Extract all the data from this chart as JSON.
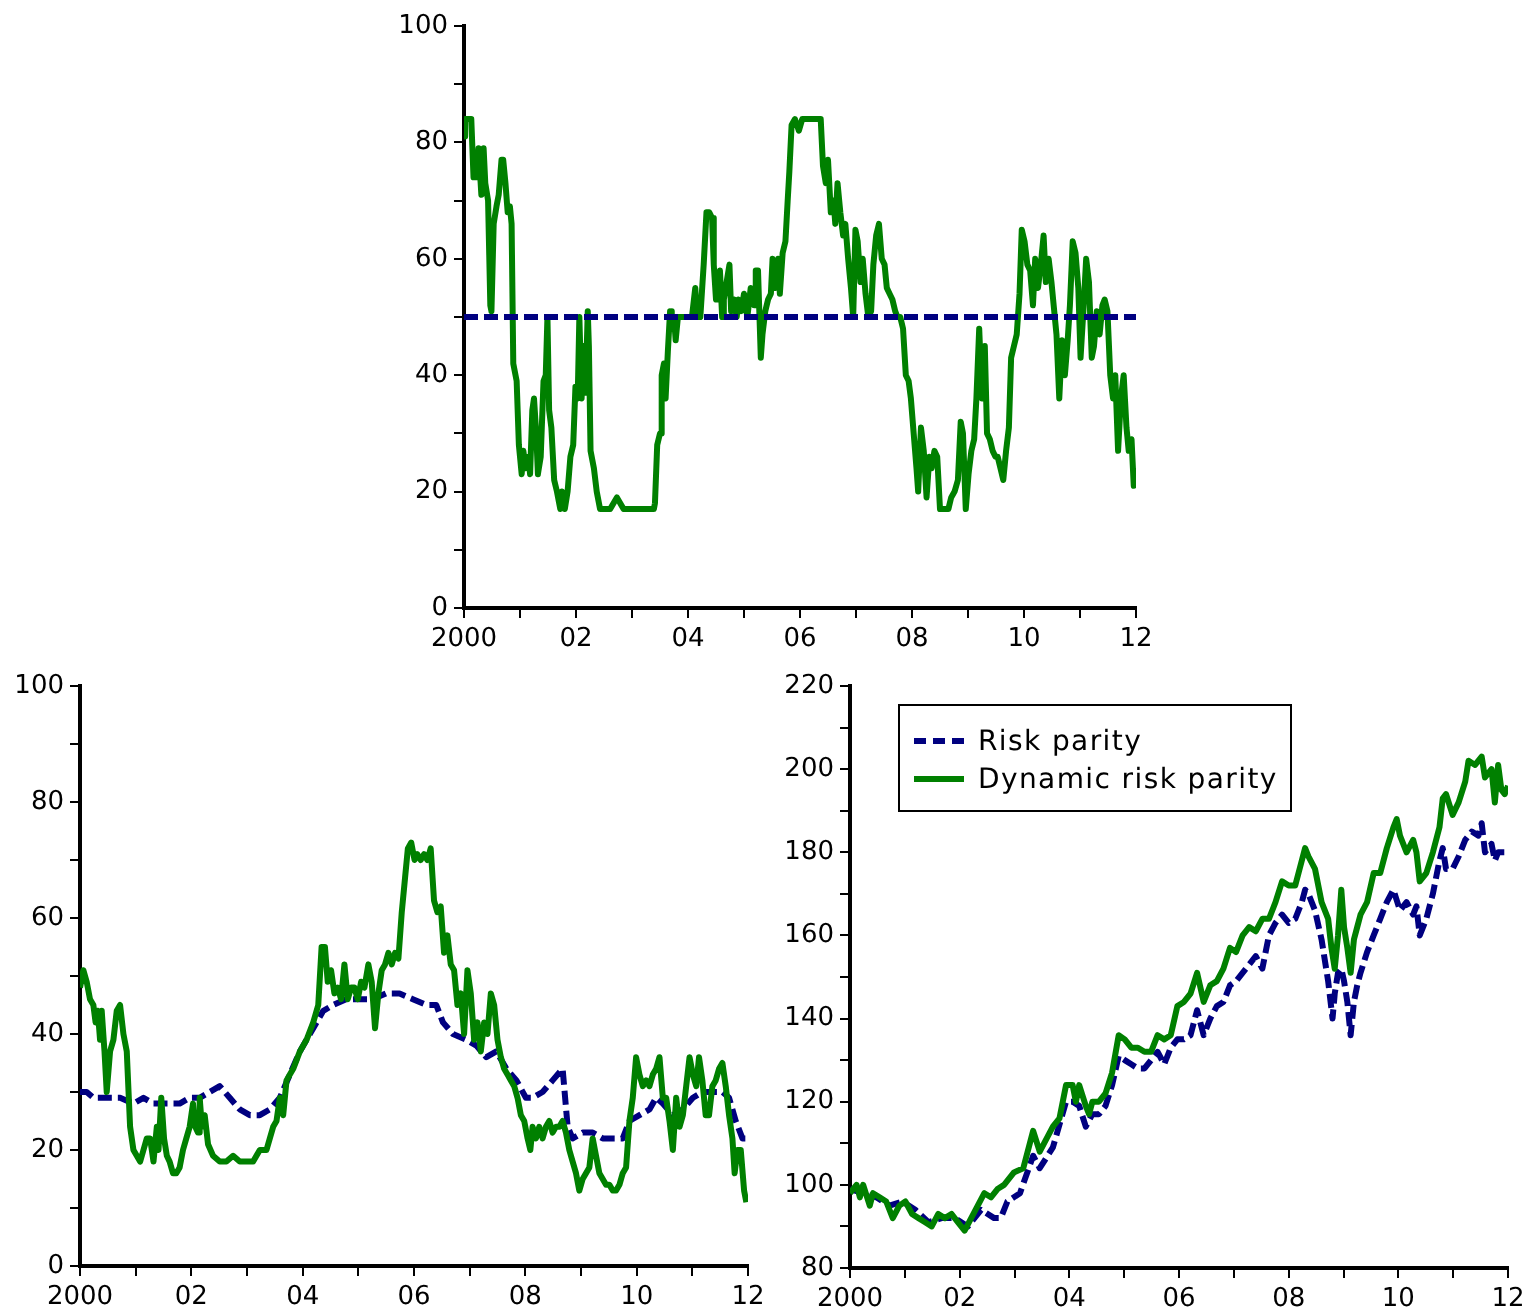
{
  "chart_data": [
    {
      "type": "line",
      "series": [
        {
          "color": "#008000",
          "line_style": "solid",
          "x": [
            2000,
            2000.02,
            2000.13,
            2000.17,
            2000.23,
            2000.26,
            2000.31,
            2000.35,
            2000.38,
            2000.43,
            2000.47,
            2000.49,
            2000.53,
            2000.58,
            2000.62,
            2000.67,
            2000.7,
            2000.74,
            2000.78,
            2000.82,
            2000.85,
            2000.88,
            2000.94,
            2000.98,
            2001.03,
            2001.06,
            2001.1,
            2001.15,
            2001.18,
            2001.22,
            2001.25,
            2001.29,
            2001.32,
            2001.37,
            2001.42,
            2001.46,
            2001.49,
            2001.52,
            2001.56,
            2001.61,
            2001.66,
            2001.72,
            2001.75,
            2001.8,
            2001.85,
            2001.9,
            2001.95,
            2001.99,
            2002.03,
            2002.06,
            2002.1,
            2002.14,
            2002.17,
            2002.21,
            2002.23,
            2002.26,
            2002.32,
            2002.37,
            2002.43,
            2002.49,
            2002.55,
            2002.61,
            2002.67,
            2002.73,
            2002.79,
            2002.85,
            2003.39,
            2003.41,
            2003.45,
            2003.5,
            2003.53,
            2003.57,
            2003.6,
            2003.64,
            2003.68,
            2003.71,
            2003.75,
            2003.78,
            2003.82,
            2004,
            2004.07,
            2004.13,
            2004.16,
            2004.22,
            2004.28,
            2004.33,
            2004.38,
            2004.43,
            2004.46,
            2004.5,
            2004.53,
            2004.57,
            2004.61,
            2004.64,
            2004.69,
            2004.74,
            2004.77,
            2004.82,
            2004.87,
            2004.9,
            2004.95,
            2005,
            2005.06,
            2005.12,
            2005.18,
            2005.21,
            2005.25,
            2005.3,
            2005.33,
            2005.38,
            2005.43,
            2005.48,
            2005.51,
            2005.56,
            2005.61,
            2005.64,
            2005.69,
            2005.74,
            2005.78,
            2005.81,
            2005.85,
            2005.91,
            2005.98,
            2006.04,
            2006.1,
            2006.19,
            2006.31,
            2006.37,
            2006.41,
            2006.46,
            2006.5,
            2006.55,
            2006.6,
            2006.63,
            2006.67,
            2006.72,
            2006.77,
            2006.81,
            2006.86,
            2006.91,
            2006.95,
            2006.99,
            2007.03,
            2007.08,
            2007.12,
            2007.17,
            2007.22,
            2007.27,
            2007.31,
            2007.36,
            2007.41,
            2007.46,
            2007.51,
            2007.55,
            2007.6,
            2007.65,
            2007.7,
            2007.74,
            2007.79,
            2007.84,
            2007.89,
            2007.94,
            2007.98,
            2008.03,
            2008.08,
            2008.11,
            2008.16,
            2008.21,
            2008.26,
            2008.31,
            2008.35,
            2008.4,
            2008.45,
            2008.5,
            2008.58,
            2008.65,
            2008.7,
            2008.76,
            2008.82,
            2008.87,
            2008.91,
            2008.96,
            2009.01,
            2009.06,
            2009.11,
            2009.15,
            2009.2,
            2009.25,
            2009.3,
            2009.34,
            2009.39,
            2009.44,
            2009.49,
            2009.53,
            2009.58,
            2009.63,
            2009.68,
            2009.73,
            2009.77,
            2009.82,
            2009.87,
            2009.92,
            2009.96,
            2010.01,
            2010.06,
            2010.11,
            2010.16,
            2010.2,
            2010.25,
            2010.3,
            2010.35,
            2010.39,
            2010.44,
            2010.49,
            2010.54,
            2010.58,
            2010.63,
            2010.68,
            2010.73,
            2010.78,
            2010.82,
            2010.87,
            2010.92,
            2010.97,
            2011.01,
            2011.06,
            2011.11,
            2011.16,
            2011.21,
            2011.25,
            2011.3,
            2011.35,
            2011.4,
            2011.44,
            2011.49,
            2011.54,
            2011.59,
            2011.63,
            2011.68,
            2011.73,
            2011.78,
            2011.83,
            2011.87,
            2011.92,
            2011.96,
            2012
          ],
          "values": [
            81,
            84,
            84,
            74,
            74,
            79,
            71,
            79,
            73,
            70,
            52,
            51,
            66,
            69,
            71,
            77,
            77,
            73,
            68,
            69,
            66,
            42,
            39,
            28,
            23,
            27,
            24,
            26,
            23,
            34,
            36,
            30,
            23,
            26,
            39,
            40,
            50,
            34,
            31,
            22,
            20,
            17,
            20,
            17,
            20,
            26,
            28,
            38,
            36,
            50,
            36,
            45,
            37,
            51,
            45,
            27,
            24,
            20,
            17,
            17,
            17,
            17,
            18,
            19,
            18,
            17,
            17,
            18,
            28,
            30,
            40,
            42,
            36,
            44,
            51,
            48,
            50,
            46,
            50,
            50,
            50,
            55,
            50,
            50,
            59,
            68,
            68,
            67,
            59,
            53,
            55,
            58,
            50,
            53,
            56,
            59,
            51,
            53,
            50,
            53,
            51,
            54,
            50,
            55,
            52,
            58,
            58,
            43,
            47,
            51,
            53,
            54,
            60,
            55,
            60,
            54,
            61,
            63,
            70,
            75,
            83,
            84,
            82,
            84,
            84,
            84,
            84,
            84,
            76,
            73,
            77,
            68,
            70,
            66,
            73,
            68,
            64,
            66,
            60,
            55,
            50,
            65,
            63,
            56,
            60,
            54,
            50,
            51,
            59,
            64,
            66,
            60,
            59,
            55,
            54,
            53,
            51,
            50,
            50,
            48,
            40,
            39,
            36,
            30,
            24,
            20,
            31,
            27,
            19,
            26,
            24,
            27,
            26,
            17,
            17,
            17,
            19,
            20,
            22,
            32,
            30,
            17,
            23,
            27,
            29,
            36,
            48,
            36,
            45,
            30,
            29,
            27,
            26,
            26,
            24,
            22,
            27,
            31,
            43,
            45,
            47,
            54,
            65,
            63,
            59,
            58,
            52,
            60,
            55,
            59,
            64,
            56,
            60,
            56,
            51,
            47,
            36,
            46,
            40,
            46,
            52,
            63,
            61,
            55,
            43,
            51,
            60,
            56,
            43,
            45,
            51,
            47,
            52,
            53,
            51,
            40,
            36,
            40,
            27,
            36,
            40,
            31,
            27,
            29,
            21,
            24
          ]
        },
        {
          "color": "#000080",
          "line_style": "dashed",
          "x": [
            2000,
            2012
          ],
          "values": [
            50,
            50
          ]
        }
      ],
      "xlim": [
        2000,
        2012
      ],
      "xticks": [
        {
          "value": 2000,
          "label": "2000"
        },
        {
          "value": 2001,
          "label": null
        },
        {
          "value": 2002,
          "label": "02"
        },
        {
          "value": 2003,
          "label": null
        },
        {
          "value": 2004,
          "label": "04"
        },
        {
          "value": 2005,
          "label": null
        },
        {
          "value": 2006,
          "label": "06"
        },
        {
          "value": 2007,
          "label": null
        },
        {
          "value": 2008,
          "label": "08"
        },
        {
          "value": 2009,
          "label": null
        },
        {
          "value": 2010,
          "label": "10"
        },
        {
          "value": 2011,
          "label": null
        },
        {
          "value": 2012,
          "label": "12"
        }
      ],
      "ylim": [
        0,
        100
      ],
      "yticks": [
        0,
        {
          "value": 10,
          "label": null
        },
        20,
        {
          "value": 30,
          "label": null
        },
        40,
        {
          "value": 50,
          "label": null
        },
        60,
        {
          "value": 70,
          "label": null
        },
        80,
        {
          "value": 90,
          "label": null
        },
        100
      ]
    },
    {
      "type": "line",
      "series": [
        {
          "color": "#000080",
          "line_style": "dashed",
          "x": [
            2000,
            2000.12,
            2000.24,
            2000.36,
            2000.54,
            2000.72,
            2000.96,
            2001.14,
            2001.32,
            2001.5,
            2001.67,
            2001.79,
            2001.97,
            2002.15,
            2002.33,
            2002.51,
            2002.69,
            2002.87,
            2003.05,
            2003.23,
            2003.41,
            2003.59,
            2003.77,
            2003.95,
            2004.19,
            2004.37,
            2004.55,
            2004.78,
            2005.02,
            2005.26,
            2005.5,
            2005.74,
            2005.98,
            2006.22,
            2006.4,
            2006.52,
            2006.7,
            2006.94,
            2007.12,
            2007.3,
            2007.48,
            2007.66,
            2007.84,
            2008.01,
            2008.13,
            2008.31,
            2008.49,
            2008.67,
            2008.76,
            2008.85,
            2009.03,
            2009.21,
            2009.39,
            2009.57,
            2009.75,
            2009.87,
            2010.05,
            2010.23,
            2010.35,
            2010.47,
            2010.65,
            2010.83,
            2011.01,
            2011.18,
            2011.36,
            2011.54,
            2011.66,
            2011.78,
            2011.9,
            2011.99
          ],
          "values": [
            30,
            30,
            29,
            29,
            29,
            29,
            28,
            29,
            28,
            28,
            28,
            28,
            29,
            29,
            30,
            31,
            29,
            27,
            26,
            26,
            27,
            29,
            33,
            37,
            41,
            44,
            45,
            46,
            46,
            46,
            47,
            47,
            46,
            45,
            45,
            42,
            40,
            39,
            38,
            36,
            37,
            34,
            32,
            29,
            29,
            30,
            32,
            34,
            24,
            22,
            23,
            23,
            22,
            22,
            22,
            25,
            26,
            27,
            29,
            28,
            26,
            27,
            29,
            30,
            30,
            30,
            29,
            25,
            22,
            22
          ]
        },
        {
          "color": "#008000",
          "line_style": "solid",
          "x": [
            2000,
            2000.06,
            2000.12,
            2000.18,
            2000.24,
            2000.28,
            2000.32,
            2000.36,
            2000.39,
            2000.44,
            2000.48,
            2000.54,
            2000.6,
            2000.66,
            2000.72,
            2000.78,
            2000.84,
            2000.9,
            2000.96,
            2001.02,
            2001.08,
            2001.14,
            2001.2,
            2001.26,
            2001.32,
            2001.38,
            2001.41,
            2001.46,
            2001.51,
            2001.56,
            2001.61,
            2001.67,
            2001.73,
            2001.79,
            2001.85,
            2001.91,
            2001.97,
            2002.03,
            2002.07,
            2002.12,
            2002.15,
            2002.19,
            2002.24,
            2002.3,
            2002.39,
            2002.51,
            2002.63,
            2002.75,
            2002.87,
            2002.99,
            2003.11,
            2003.23,
            2003.35,
            2003.41,
            2003.47,
            2003.53,
            2003.59,
            2003.65,
            2003.71,
            2003.77,
            2003.83,
            2003.95,
            2004.07,
            2004.19,
            2004.28,
            2004.34,
            2004.4,
            2004.45,
            2004.51,
            2004.57,
            2004.63,
            2004.69,
            2004.75,
            2004.81,
            2004.87,
            2004.93,
            2004.99,
            2005.05,
            2005.11,
            2005.18,
            2005.24,
            2005.3,
            2005.36,
            2005.42,
            2005.48,
            2005.54,
            2005.6,
            2005.66,
            2005.72,
            2005.78,
            2005.84,
            2005.89,
            2005.95,
            2006.01,
            2006.06,
            2006.12,
            2006.18,
            2006.24,
            2006.3,
            2006.36,
            2006.42,
            2006.48,
            2006.54,
            2006.6,
            2006.66,
            2006.72,
            2006.78,
            2006.84,
            2006.9,
            2006.96,
            2007.02,
            2007.08,
            2007.14,
            2007.2,
            2007.26,
            2007.32,
            2007.38,
            2007.44,
            2007.5,
            2007.56,
            2007.62,
            2007.68,
            2007.74,
            2007.8,
            2007.86,
            2007.92,
            2007.98,
            2008.04,
            2008.09,
            2008.13,
            2008.19,
            2008.25,
            2008.31,
            2008.37,
            2008.43,
            2008.49,
            2008.55,
            2008.61,
            2008.67,
            2008.73,
            2008.79,
            2008.85,
            2008.91,
            2008.97,
            2009.03,
            2009.09,
            2009.15,
            2009.21,
            2009.27,
            2009.33,
            2009.39,
            2009.45,
            2009.51,
            2009.57,
            2009.63,
            2009.69,
            2009.75,
            2009.81,
            2009.87,
            2009.93,
            2009.99,
            2010.05,
            2010.11,
            2010.17,
            2010.23,
            2010.29,
            2010.35,
            2010.41,
            2010.47,
            2010.53,
            2010.59,
            2010.65,
            2010.71,
            2010.77,
            2010.83,
            2010.89,
            2010.95,
            2011.01,
            2011.07,
            2011.12,
            2011.18,
            2011.24,
            2011.3,
            2011.36,
            2011.42,
            2011.48,
            2011.54,
            2011.6,
            2011.66,
            2011.72,
            2011.76,
            2011.81,
            2011.87,
            2011.93,
            2011.97
          ],
          "values": [
            48,
            51,
            49,
            46,
            45,
            42,
            44,
            39,
            44,
            37,
            30,
            37,
            39,
            44,
            45,
            40,
            37,
            24,
            20,
            19,
            18,
            20,
            22,
            22,
            18,
            24,
            20,
            29,
            22,
            19,
            18,
            16,
            16,
            17,
            20,
            22,
            24,
            28,
            24,
            23,
            29,
            24,
            26,
            21,
            19,
            18,
            18,
            19,
            18,
            18,
            18,
            20,
            20,
            22,
            24,
            25,
            29,
            26,
            32,
            33,
            34,
            37,
            39,
            42,
            45,
            55,
            55,
            49,
            51,
            47,
            48,
            46,
            52,
            46,
            48,
            48,
            46,
            49,
            48,
            52,
            49,
            41,
            47,
            51,
            52,
            54,
            52,
            54,
            53,
            61,
            67,
            72,
            73,
            70,
            71,
            70,
            71,
            70,
            72,
            63,
            61,
            62,
            54,
            57,
            52,
            51,
            45,
            47,
            40,
            51,
            47,
            39,
            42,
            37,
            42,
            40,
            47,
            45,
            39,
            36,
            34,
            33,
            32,
            31,
            29,
            26,
            25,
            22,
            20,
            24,
            22,
            24,
            22,
            24,
            25,
            23,
            24,
            24,
            25,
            23,
            20,
            18,
            16,
            13,
            15,
            16,
            17,
            22,
            19,
            16,
            15,
            14,
            14,
            13,
            13,
            14,
            16,
            17,
            25,
            29,
            36,
            33,
            31,
            32,
            31,
            33,
            34,
            36,
            29,
            29,
            25,
            20,
            29,
            24,
            26,
            31,
            36,
            33,
            31,
            36,
            32,
            26,
            26,
            31,
            32,
            34,
            35,
            31,
            26,
            22,
            16,
            20,
            20,
            13,
            11
          ]
        }
      ],
      "xlim": [
        2000,
        2012
      ],
      "xticks": [
        {
          "value": 2000,
          "label": "2000"
        },
        {
          "value": 2001,
          "label": null
        },
        {
          "value": 2002,
          "label": "02"
        },
        {
          "value": 2003,
          "label": null
        },
        {
          "value": 2004,
          "label": "04"
        },
        {
          "value": 2005,
          "label": null
        },
        {
          "value": 2006,
          "label": "06"
        },
        {
          "value": 2007,
          "label": null
        },
        {
          "value": 2008,
          "label": "08"
        },
        {
          "value": 2009,
          "label": null
        },
        {
          "value": 2010,
          "label": "10"
        },
        {
          "value": 2011,
          "label": null
        },
        {
          "value": 2012,
          "label": "12"
        }
      ],
      "ylim": [
        0,
        100
      ],
      "yticks": [
        0,
        {
          "value": 10,
          "label": null
        },
        20,
        {
          "value": 30,
          "label": null
        },
        40,
        {
          "value": 50,
          "label": null
        },
        60,
        {
          "value": 70,
          "label": null
        },
        80,
        {
          "value": 90,
          "label": null
        },
        100
      ]
    },
    {
      "type": "line",
      "legend": "top left",
      "series": [
        {
          "name": "Risk parity",
          "color": "#000080",
          "line_style": "dashed",
          "x": [
            2000,
            2000.24,
            2000.48,
            2000.72,
            2000.96,
            2001.19,
            2001.43,
            2001.67,
            2001.91,
            2002.15,
            2002.39,
            2002.63,
            2002.75,
            2002.87,
            2003.1,
            2003.34,
            2003.46,
            2003.7,
            2003.94,
            2004.06,
            2004.18,
            2004.3,
            2004.42,
            2004.54,
            2004.66,
            2004.78,
            2004.9,
            2005.01,
            2005.13,
            2005.25,
            2005.37,
            2005.49,
            2005.61,
            2005.73,
            2005.85,
            2005.97,
            2006.09,
            2006.21,
            2006.33,
            2006.45,
            2006.57,
            2006.69,
            2006.81,
            2006.93,
            2007.04,
            2007.16,
            2007.28,
            2007.4,
            2007.52,
            2007.64,
            2007.76,
            2007.88,
            2008,
            2008.12,
            2008.24,
            2008.3,
            2008.36,
            2008.48,
            2008.6,
            2008.72,
            2008.8,
            2008.84,
            2008.9,
            2008.96,
            2009.01,
            2009.07,
            2009.13,
            2009.19,
            2009.25,
            2009.31,
            2009.43,
            2009.55,
            2009.67,
            2009.79,
            2009.91,
            2010.03,
            2010.15,
            2010.27,
            2010.33,
            2010.39,
            2010.51,
            2010.63,
            2010.75,
            2010.81,
            2010.87,
            2010.99,
            2011.1,
            2011.22,
            2011.34,
            2011.46,
            2011.52,
            2011.58,
            2011.7,
            2011.76,
            2011.82,
            2011.88,
            2012
          ],
          "values": [
            99,
            98,
            97,
            95,
            96,
            94,
            91,
            92,
            92,
            90,
            94,
            92,
            92,
            96,
            98,
            107,
            104,
            109,
            120,
            120,
            119,
            114,
            117,
            117,
            119,
            124,
            131,
            130,
            129,
            128,
            128,
            130,
            132,
            129,
            133,
            135,
            135,
            136,
            142,
            136,
            140,
            143,
            144,
            148,
            149,
            151,
            153,
            155,
            152,
            160,
            163,
            165,
            163,
            164,
            168,
            171,
            170,
            166,
            159,
            149,
            140,
            146,
            151,
            152,
            149,
            144,
            136,
            144,
            148,
            151,
            156,
            160,
            164,
            168,
            171,
            166,
            168,
            165,
            167,
            160,
            164,
            170,
            178,
            181,
            176,
            176,
            179,
            183,
            185,
            184,
            187,
            180,
            182,
            178,
            180,
            180,
            180
          ]
        },
        {
          "name": "Dynamic risk parity",
          "color": "#008000",
          "line_style": "solid",
          "x": [
            2000,
            2000.12,
            2000.18,
            2000.24,
            2000.36,
            2000.42,
            2000.54,
            2000.66,
            2000.78,
            2000.9,
            2001.01,
            2001.13,
            2001.25,
            2001.37,
            2001.49,
            2001.61,
            2001.73,
            2001.85,
            2001.97,
            2002.09,
            2002.21,
            2002.33,
            2002.45,
            2002.57,
            2002.69,
            2002.81,
            2002.99,
            2003.16,
            2003.34,
            2003.46,
            2003.58,
            2003.7,
            2003.82,
            2003.94,
            2004.06,
            2004.12,
            2004.18,
            2004.3,
            2004.36,
            2004.42,
            2004.54,
            2004.66,
            2004.78,
            2004.9,
            2005.01,
            2005.13,
            2005.25,
            2005.37,
            2005.49,
            2005.61,
            2005.73,
            2005.85,
            2005.97,
            2006.09,
            2006.21,
            2006.33,
            2006.45,
            2006.57,
            2006.69,
            2006.81,
            2006.93,
            2007.04,
            2007.16,
            2007.28,
            2007.4,
            2007.52,
            2007.64,
            2007.76,
            2007.88,
            2008,
            2008.12,
            2008.24,
            2008.3,
            2008.36,
            2008.48,
            2008.6,
            2008.72,
            2008.78,
            2008.84,
            2008.9,
            2008.96,
            2009.01,
            2009.07,
            2009.13,
            2009.19,
            2009.25,
            2009.31,
            2009.43,
            2009.55,
            2009.67,
            2009.79,
            2009.91,
            2009.97,
            2010.03,
            2010.15,
            2010.27,
            2010.33,
            2010.39,
            2010.51,
            2010.63,
            2010.75,
            2010.81,
            2010.87,
            2010.99,
            2011.1,
            2011.22,
            2011.28,
            2011.4,
            2011.52,
            2011.58,
            2011.7,
            2011.76,
            2011.82,
            2011.88,
            2011.94,
            2012
          ],
          "values": [
            98,
            100,
            97,
            100,
            95,
            98,
            97,
            96,
            92,
            95,
            96,
            93,
            92,
            91,
            90,
            93,
            92,
            93,
            91,
            89,
            92,
            95,
            98,
            97,
            99,
            100,
            103,
            104,
            113,
            108,
            111,
            114,
            116,
            124,
            124,
            120,
            124,
            119,
            117,
            120,
            120,
            122,
            127,
            136,
            135,
            133,
            133,
            132,
            132,
            136,
            135,
            136,
            143,
            144,
            146,
            151,
            144,
            148,
            149,
            152,
            157,
            156,
            160,
            162,
            161,
            164,
            164,
            168,
            173,
            172,
            172,
            178,
            181,
            179,
            176,
            168,
            164,
            157,
            152,
            160,
            171,
            162,
            157,
            151,
            159,
            162,
            165,
            168,
            175,
            175,
            181,
            186,
            188,
            184,
            180,
            183,
            180,
            173,
            175,
            180,
            186,
            193,
            194,
            189,
            192,
            197,
            202,
            201,
            203,
            198,
            200,
            192,
            201,
            195,
            194,
            196
          ]
        }
      ],
      "xlim": [
        2000,
        2012
      ],
      "xticks": [
        {
          "value": 2000,
          "label": "2000"
        },
        {
          "value": 2001,
          "label": null
        },
        {
          "value": 2002,
          "label": "02"
        },
        {
          "value": 2003,
          "label": null
        },
        {
          "value": 2004,
          "label": "04"
        },
        {
          "value": 2005,
          "label": null
        },
        {
          "value": 2006,
          "label": "06"
        },
        {
          "value": 2007,
          "label": null
        },
        {
          "value": 2008,
          "label": "08"
        },
        {
          "value": 2009,
          "label": null
        },
        {
          "value": 2010,
          "label": "10"
        },
        {
          "value": 2011,
          "label": null
        },
        {
          "value": 2012,
          "label": "12"
        }
      ],
      "ylim": [
        80,
        220
      ],
      "yticks": [
        80,
        {
          "value": 90,
          "label": null
        },
        100,
        {
          "value": 110,
          "label": null
        },
        120,
        {
          "value": 130,
          "label": null
        },
        140,
        {
          "value": 150,
          "label": null
        },
        160,
        {
          "value": 170,
          "label": null
        },
        180,
        {
          "value": 190,
          "label": null
        },
        200,
        {
          "value": 210,
          "label": null
        },
        220
      ]
    }
  ]
}
